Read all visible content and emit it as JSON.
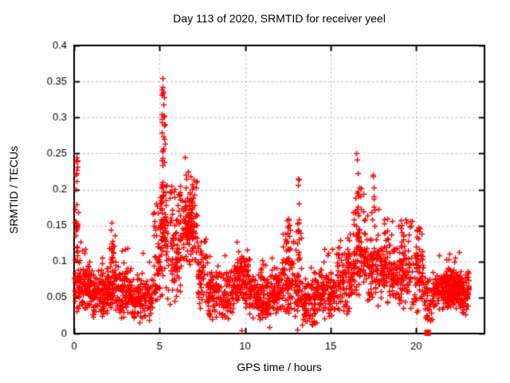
{
  "chart_data": {
    "type": "scatter",
    "title": "Day 113 of 2020, SRMTID for receiver yeel",
    "xlabel": "GPS time / hours",
    "ylabel": "SRMTID / TECUs",
    "xlim": [
      0,
      24
    ],
    "ylim": [
      0,
      0.4
    ],
    "xticks": [
      0,
      5,
      10,
      15,
      20
    ],
    "xtick_labels": [
      "0",
      "5",
      "10",
      "15",
      "20"
    ],
    "yticks": [
      0,
      0.05,
      0.1,
      0.15,
      0.2,
      0.25,
      0.3,
      0.35,
      0.4
    ],
    "ytick_labels": [
      "0",
      "0.05",
      "0.1",
      "0.15",
      "0.2",
      "0.25",
      "0.3",
      "0.35",
      "0.4"
    ],
    "grid": {
      "visible": true,
      "color": "#b8b8b8",
      "dash": [
        2.5,
        3
      ]
    },
    "background_color": "#ffffff",
    "axis_color": "#000000",
    "text_color": "#000000",
    "marker": {
      "shape": "plus",
      "color": "#ff0000",
      "size": 7,
      "line_width": 1.4
    },
    "legend": "none",
    "seed": 1137,
    "segment_format": "[t_start_h, t_end_h, n_points, center_TECU, spread_TECU, tail_prob, tail_height_TECU]",
    "baseline_segments": [
      [
        0.0,
        0.5,
        60,
        0.068,
        0.026,
        0.08,
        0.05
      ],
      [
        0.5,
        1.0,
        70,
        0.066,
        0.024,
        0.05,
        0.04
      ],
      [
        1.0,
        2.0,
        130,
        0.058,
        0.026,
        0.04,
        0.05
      ],
      [
        2.0,
        2.5,
        60,
        0.068,
        0.028,
        0.1,
        0.05
      ],
      [
        2.5,
        3.3,
        95,
        0.06,
        0.026,
        0.05,
        0.04
      ],
      [
        3.3,
        4.6,
        135,
        0.05,
        0.024,
        0.03,
        0.04
      ],
      [
        4.6,
        5.0,
        48,
        0.08,
        0.035,
        0.25,
        0.07
      ],
      [
        5.0,
        5.7,
        60,
        0.105,
        0.045,
        0.3,
        0.06
      ],
      [
        5.7,
        6.3,
        75,
        0.11,
        0.048,
        0.15,
        0.05
      ],
      [
        6.3,
        7.2,
        95,
        0.145,
        0.045,
        0.1,
        0.04
      ],
      [
        7.2,
        7.8,
        60,
        0.085,
        0.038,
        0.05,
        0.03
      ],
      [
        7.8,
        9.3,
        160,
        0.055,
        0.025,
        0.02,
        0.03
      ],
      [
        9.3,
        10.2,
        100,
        0.068,
        0.028,
        0.06,
        0.04
      ],
      [
        10.2,
        11.5,
        140,
        0.052,
        0.024,
        0.04,
        0.04
      ],
      [
        11.5,
        12.2,
        80,
        0.06,
        0.028,
        0.06,
        0.04
      ],
      [
        12.2,
        12.75,
        65,
        0.068,
        0.03,
        0.15,
        0.05
      ],
      [
        12.75,
        13.3,
        50,
        0.065,
        0.032,
        0.12,
        0.06
      ],
      [
        13.3,
        14.2,
        95,
        0.045,
        0.028,
        0.02,
        0.03
      ],
      [
        14.2,
        15.3,
        115,
        0.055,
        0.025,
        0.04,
        0.04
      ],
      [
        15.3,
        16.3,
        105,
        0.07,
        0.03,
        0.08,
        0.04
      ],
      [
        16.3,
        17.1,
        95,
        0.11,
        0.045,
        0.12,
        0.05
      ],
      [
        17.1,
        17.9,
        80,
        0.09,
        0.038,
        0.08,
        0.05
      ],
      [
        17.9,
        18.6,
        80,
        0.088,
        0.034,
        0.06,
        0.05
      ],
      [
        18.6,
        19.4,
        85,
        0.08,
        0.032,
        0.06,
        0.05
      ],
      [
        19.4,
        20.4,
        90,
        0.075,
        0.034,
        0.08,
        0.05
      ],
      [
        20.4,
        21.1,
        55,
        0.045,
        0.024,
        0.03,
        0.03
      ],
      [
        21.1,
        21.4,
        40,
        0.06,
        0.022,
        0.02,
        0.03
      ],
      [
        21.4,
        22.7,
        260,
        0.063,
        0.021,
        0.02,
        0.03
      ],
      [
        22.7,
        23.1,
        45,
        0.055,
        0.022,
        0.02,
        0.03
      ]
    ],
    "column_format": "[t_center_h, t_width_h, n_points, y_min_TECU, y_max_TECU, bottom_weight_pow]",
    "spike_columns": [
      [
        0.15,
        0.2,
        24,
        0.1,
        0.248,
        1.0
      ],
      [
        2.25,
        0.18,
        14,
        0.09,
        0.155,
        1.2
      ],
      [
        5.2,
        0.3,
        55,
        0.13,
        0.3,
        1.8
      ],
      [
        5.2,
        0.14,
        8,
        0.29,
        0.356,
        1.0
      ],
      [
        6.7,
        0.5,
        48,
        0.13,
        0.205,
        1.4
      ],
      [
        9.7,
        0.4,
        14,
        0.08,
        0.115,
        1.2
      ],
      [
        11.0,
        0.35,
        10,
        0.075,
        0.102,
        1.2
      ],
      [
        12.5,
        0.22,
        16,
        0.09,
        0.16,
        1.3
      ],
      [
        13.1,
        0.14,
        15,
        0.1,
        0.215,
        1.1
      ],
      [
        16.05,
        0.16,
        8,
        0.09,
        0.132,
        1.2
      ],
      [
        16.65,
        0.28,
        18,
        0.13,
        0.225,
        1.4
      ],
      [
        17.5,
        0.12,
        8,
        0.14,
        0.22,
        1.0
      ],
      [
        18.2,
        0.22,
        10,
        0.1,
        0.16,
        1.2
      ],
      [
        19.2,
        0.16,
        8,
        0.1,
        0.155,
        1.2
      ],
      [
        20.1,
        0.2,
        12,
        0.09,
        0.148,
        1.2
      ]
    ],
    "feature_points": [
      [
        0.12,
        0.245
      ],
      [
        0.18,
        0.232
      ],
      [
        5.15,
        0.355
      ],
      [
        5.18,
        0.342
      ],
      [
        5.12,
        0.331
      ],
      [
        5.22,
        0.318
      ],
      [
        5.28,
        0.302
      ],
      [
        5.33,
        0.29
      ],
      [
        6.5,
        0.245
      ],
      [
        6.56,
        0.215
      ],
      [
        13.08,
        0.215
      ],
      [
        12.52,
        0.157
      ],
      [
        16.5,
        0.25
      ],
      [
        16.56,
        0.242
      ],
      [
        17.48,
        0.221
      ],
      [
        14.65,
        0.117
      ],
      [
        15.12,
        0.117
      ],
      [
        20.15,
        0.132
      ],
      [
        21.9,
        0.103
      ],
      [
        18.95,
        0.15
      ]
    ],
    "low_points": [
      [
        9.8,
        0.004
      ],
      [
        11.42,
        0.009
      ],
      [
        13.05,
        0.006
      ],
      [
        13.9,
        0.013
      ],
      [
        14.02,
        0.018
      ],
      [
        20.85,
        0.018
      ],
      [
        3.95,
        0.022
      ],
      [
        22.95,
        0.034
      ]
    ],
    "square_marker": {
      "x": 20.67,
      "y": 0.001,
      "size": 8,
      "color": "#ff0000"
    }
  }
}
